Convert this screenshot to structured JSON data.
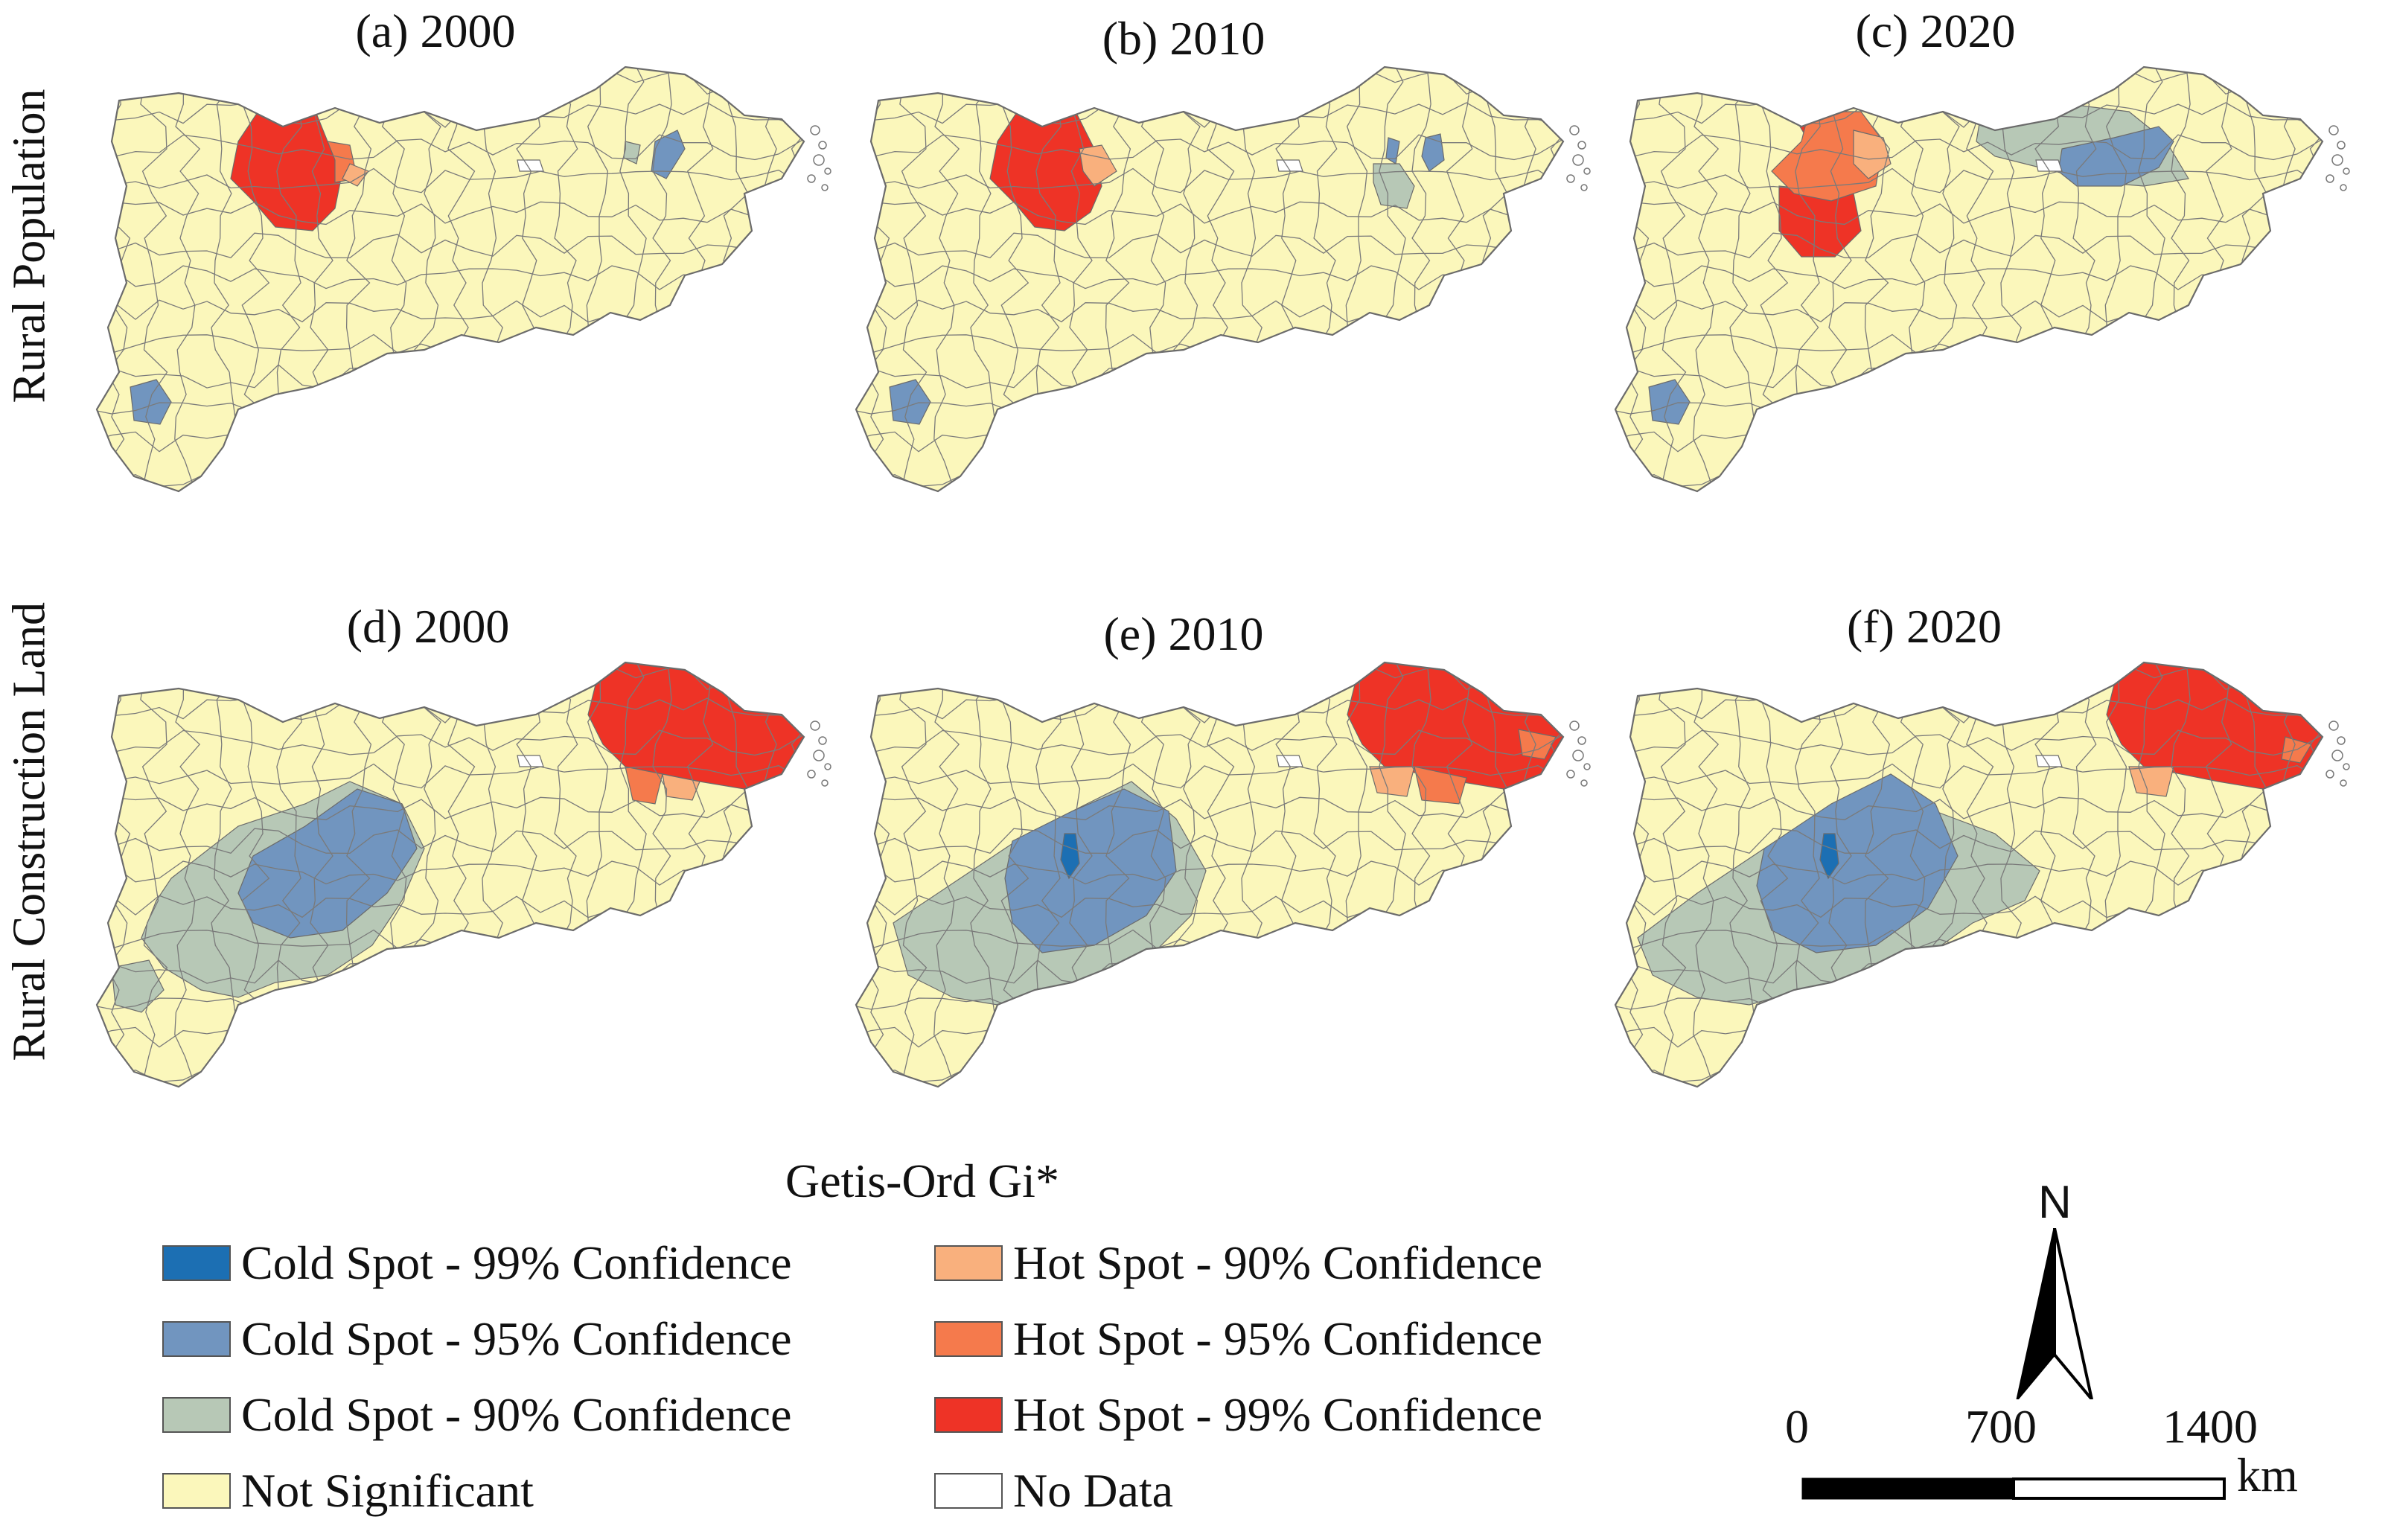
{
  "rows": [
    {
      "label": "Rural Population"
    },
    {
      "label": "Rural Construction Land"
    }
  ],
  "panels": [
    {
      "title": "(a) 2000",
      "variant": "pop2000"
    },
    {
      "title": "(b) 2010",
      "variant": "pop2010"
    },
    {
      "title": "(c) 2020",
      "variant": "pop2020"
    },
    {
      "title": "(d) 2000",
      "variant": "land2000"
    },
    {
      "title": "(e) 2010",
      "variant": "land2010"
    },
    {
      "title": "(f) 2020",
      "variant": "land2020"
    }
  ],
  "legend": {
    "title": "Getis-Ord Gi*",
    "items": [
      {
        "label": "Cold Spot - 99% Confidence",
        "color": "#1c6fb3"
      },
      {
        "label": "Cold Spot - 95% Confidence",
        "color": "#7195bf"
      },
      {
        "label": "Cold Spot - 90% Confidence",
        "color": "#b7c8b6"
      },
      {
        "label": "Not Significant",
        "color": "#fbf7bb"
      },
      {
        "label": "Hot Spot - 90% Confidence",
        "color": "#f9b07d"
      },
      {
        "label": "Hot Spot - 95% Confidence",
        "color": "#f57a4c"
      },
      {
        "label": "Hot Spot - 99% Confidence",
        "color": "#ee3326"
      },
      {
        "label": "No Data",
        "color": "#ffffff"
      }
    ]
  },
  "north_arrow": {
    "label": "N"
  },
  "scale_bar": {
    "ticks": [
      "0",
      "700",
      "1400"
    ],
    "unit": "km"
  }
}
